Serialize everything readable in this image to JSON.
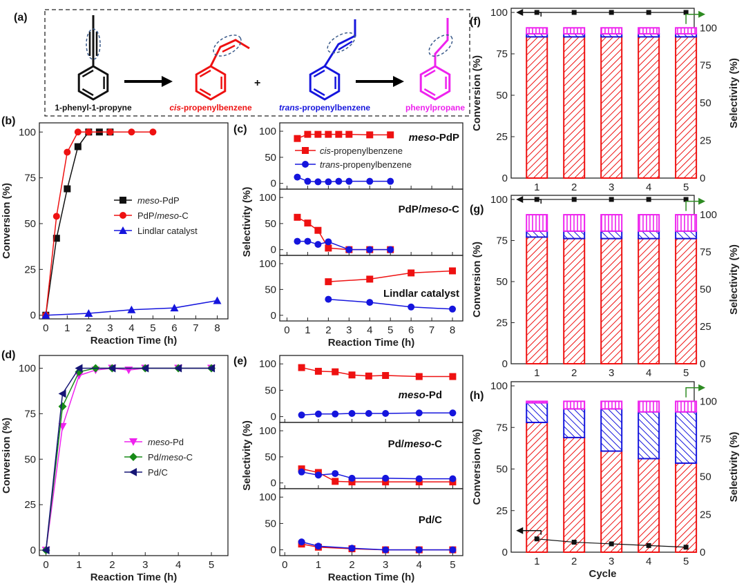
{
  "scheme": {
    "panel_label": "(a)",
    "molecules": [
      {
        "name": "1-phenyl-1-propyne",
        "color": "#111111"
      },
      {
        "name": "cis-propenylbenzene",
        "prefix": "cis",
        "suffix": "-propenylbenzene",
        "color": "#ee1111"
      },
      {
        "name": "trans-propenylbenzene",
        "prefix": "trans",
        "suffix": "-propenylbenzene",
        "color": "#1515dd"
      },
      {
        "name": "phenylpropane",
        "color": "#ee22ee"
      }
    ],
    "plus": "+"
  },
  "colors": {
    "cis": "#ee1111",
    "trans": "#1515dd",
    "propane": "#ee22ee",
    "black": "#111111",
    "green": "#2e8b22",
    "mesoPd": "#ee22ee",
    "PdmesoC": "#178a17",
    "PdC": "#151575"
  },
  "chart_data": [
    {
      "panel": "(b)",
      "type": "line",
      "xlabel": "Reaction Time (h)",
      "ylabel": "Conversion (%)",
      "xlim": [
        0,
        8
      ],
      "ylim": [
        0,
        100
      ],
      "xticks": [
        "0",
        "1",
        "2",
        "3",
        "4",
        "5",
        "6",
        "7",
        "8"
      ],
      "xtick_values": [
        0,
        1,
        2,
        3,
        4,
        5,
        6,
        7,
        8
      ],
      "yticks": [
        "0",
        "25",
        "50",
        "75",
        "100"
      ],
      "ytick_values": [
        0,
        25,
        50,
        75,
        100
      ],
      "legend": "center-right",
      "series": [
        {
          "name": "meso-PdP",
          "italic": "meso",
          "rest": "-PdP",
          "color": "#111111",
          "marker": "square",
          "x": [
            0,
            0.5,
            1,
            1.5,
            2,
            2.5,
            3
          ],
          "y": [
            0,
            42,
            69,
            92,
            100,
            100,
            100
          ]
        },
        {
          "name": "PdP/meso-C",
          "pre": "PdP/",
          "italic": "meso",
          "rest": "-C",
          "color": "#ee1111",
          "marker": "circle",
          "x": [
            0,
            0.5,
            1,
            1.5,
            2,
            3,
            4,
            5
          ],
          "y": [
            0,
            54,
            89,
            100,
            100,
            100,
            100,
            100
          ]
        },
        {
          "name": "Lindlar catalyst",
          "color": "#1515dd",
          "marker": "triangle",
          "x": [
            0,
            2,
            4,
            6,
            8
          ],
          "y": [
            0,
            1,
            3,
            4,
            8
          ]
        }
      ]
    },
    {
      "panel": "(c)",
      "type": "line",
      "xlabel": "Reaction Time (h)",
      "ylabel": "Selectivity (%)",
      "xlim": [
        0,
        8
      ],
      "xticks": [
        "0",
        "1",
        "2",
        "3",
        "4",
        "5",
        "6",
        "7",
        "8"
      ],
      "xtick_values": [
        0,
        1,
        2,
        3,
        4,
        5,
        6,
        7,
        8
      ],
      "yticks": [
        "0",
        "50",
        "100"
      ],
      "ytick_values": [
        0,
        50,
        100
      ],
      "legend_entries": [
        {
          "italic": "cis",
          "rest": "-propenylbenzene"
        },
        {
          "italic": "trans",
          "rest": "-propenylbenzene"
        }
      ],
      "subplots": [
        {
          "title": "meso-PdP",
          "t_italic": "meso",
          "t_rest": "-PdP",
          "series": [
            {
              "name": "cis-propenylbenzene",
              "color": "#ee1111",
              "marker": "square",
              "x": [
                0.5,
                1,
                1.5,
                2,
                2.5,
                3,
                4,
                5
              ],
              "y": [
                86,
                94,
                94,
                94,
                94,
                94,
                93,
                93
              ]
            },
            {
              "name": "trans-propenylbenzene",
              "color": "#1515dd",
              "marker": "circle",
              "x": [
                0.5,
                1,
                1.5,
                2,
                2.5,
                3,
                4,
                5
              ],
              "y": [
                12,
                4,
                3,
                3,
                4,
                4,
                4,
                4
              ]
            }
          ]
        },
        {
          "title": "PdP/meso-C",
          "t_pre": "PdP/",
          "t_italic": "meso",
          "t_rest": "-C",
          "series": [
            {
              "name": "cis-propenylbenzene",
              "color": "#ee1111",
              "marker": "square",
              "x": [
                0.5,
                1,
                1.5,
                2,
                3,
                4,
                5
              ],
              "y": [
                62,
                51,
                37,
                3,
                0,
                0,
                0
              ]
            },
            {
              "name": "trans-propenylbenzene",
              "color": "#1515dd",
              "marker": "circle",
              "x": [
                0.5,
                1,
                1.5,
                2,
                3,
                4,
                5
              ],
              "y": [
                16,
                16,
                10,
                15,
                0,
                0,
                0
              ]
            }
          ]
        },
        {
          "title": "Lindlar catalyst",
          "t_rest": "Lindlar catalyst",
          "series": [
            {
              "name": "cis-propenylbenzene",
              "color": "#ee1111",
              "marker": "square",
              "x": [
                2,
                4,
                6,
                8
              ],
              "y": [
                65,
                70,
                82,
                86
              ]
            },
            {
              "name": "trans-propenylbenzene",
              "color": "#1515dd",
              "marker": "circle",
              "x": [
                2,
                4,
                6,
                8
              ],
              "y": [
                31,
                25,
                16,
                12
              ]
            }
          ]
        }
      ]
    },
    {
      "panel": "(d)",
      "type": "line",
      "xlabel": "Reaction Time (h)",
      "ylabel": "Conversion (%)",
      "xlim": [
        0,
        5
      ],
      "ylim": [
        0,
        100
      ],
      "xticks": [
        "0",
        "1",
        "2",
        "3",
        "4",
        "5"
      ],
      "xtick_values": [
        0,
        1,
        2,
        3,
        4,
        5
      ],
      "yticks": [
        "0",
        "25",
        "50",
        "75",
        "100"
      ],
      "ytick_values": [
        0,
        25,
        50,
        75,
        100
      ],
      "legend": "center-right",
      "series": [
        {
          "name": "meso-Pd",
          "italic": "meso",
          "rest": "-Pd",
          "color": "#ee22ee",
          "marker": "triangle-down",
          "x": [
            0,
            0.5,
            1,
            1.5,
            2,
            2.5,
            3,
            4,
            5
          ],
          "y": [
            0,
            68,
            96,
            99,
            100,
            99,
            100,
            100,
            100
          ]
        },
        {
          "name": "Pd/meso-C",
          "pre": "Pd/",
          "italic": "meso",
          "rest": "-C",
          "color": "#178a17",
          "marker": "diamond",
          "x": [
            0,
            0.5,
            1,
            1.5,
            2,
            3,
            4,
            5
          ],
          "y": [
            0,
            79,
            98,
            100,
            100,
            100,
            100,
            100
          ]
        },
        {
          "name": "Pd/C",
          "rest": "Pd/C",
          "color": "#151575",
          "marker": "triangle-left",
          "x": [
            0,
            0.5,
            1,
            2,
            3,
            4,
            5
          ],
          "y": [
            0,
            86,
            100,
            100,
            100,
            100,
            100
          ]
        }
      ]
    },
    {
      "panel": "(e)",
      "type": "line",
      "xlabel": "Reaction Time (h)",
      "ylabel": "Selectivity (%)",
      "xlim": [
        0,
        5
      ],
      "xticks": [
        "0",
        "1",
        "2",
        "3",
        "4",
        "5"
      ],
      "xtick_values": [
        0,
        1,
        2,
        3,
        4,
        5
      ],
      "yticks": [
        "0",
        "50",
        "100"
      ],
      "ytick_values": [
        0,
        50,
        100
      ],
      "subplots": [
        {
          "title": "meso-Pd",
          "t_italic": "meso",
          "t_rest": "-Pd",
          "series": [
            {
              "name": "cis-propenylbenzene",
              "color": "#ee1111",
              "marker": "square",
              "x": [
                0.5,
                1,
                1.5,
                2,
                2.5,
                3,
                4,
                5
              ],
              "y": [
                93,
                86,
                85,
                79,
                77,
                78,
                76,
                76
              ]
            },
            {
              "name": "trans-propenylbenzene",
              "color": "#1515dd",
              "marker": "circle",
              "x": [
                0.5,
                1,
                1.5,
                2,
                2.5,
                3,
                4,
                5
              ],
              "y": [
                3,
                5,
                5,
                6,
                6,
                6,
                7,
                7
              ]
            }
          ]
        },
        {
          "title": "Pd/meso-C",
          "t_pre": "Pd/",
          "t_italic": "meso",
          "t_rest": "-C",
          "series": [
            {
              "name": "cis-propenylbenzene",
              "color": "#ee1111",
              "marker": "square",
              "x": [
                0.5,
                1,
                1.5,
                2,
                3,
                4,
                5
              ],
              "y": [
                27,
                20,
                3,
                2,
                2,
                2,
                2
              ]
            },
            {
              "name": "trans-propenylbenzene",
              "color": "#1515dd",
              "marker": "circle",
              "x": [
                0.5,
                1,
                1.5,
                2,
                3,
                4,
                5
              ],
              "y": [
                21,
                15,
                18,
                9,
                9,
                8,
                8
              ]
            }
          ]
        },
        {
          "title": "Pd/C",
          "t_rest": "Pd/C",
          "series": [
            {
              "name": "cis-propenylbenzene",
              "color": "#ee1111",
              "marker": "square",
              "x": [
                0.5,
                1,
                2,
                3,
                4,
                5
              ],
              "y": [
                11,
                5,
                2,
                0,
                0,
                0
              ]
            },
            {
              "name": "trans-propenylbenzene",
              "color": "#1515dd",
              "marker": "circle",
              "x": [
                0.5,
                1,
                2,
                3,
                4,
                5
              ],
              "y": [
                15,
                7,
                3,
                0,
                0,
                0
              ]
            }
          ]
        }
      ]
    },
    {
      "panel": "(f)",
      "type": "bar",
      "xlabel": "",
      "ylabel": "Conversion (%)",
      "y2label": "Selectivity (%)",
      "categories": [
        "1",
        "2",
        "3",
        "4",
        "5"
      ],
      "yticks": [
        "0",
        "25",
        "50",
        "75",
        "100"
      ],
      "ytick_values": [
        0,
        25,
        50,
        75,
        100
      ],
      "ylim": [
        0,
        100
      ],
      "y2lim": [
        0,
        100
      ],
      "conversion": [
        100,
        100,
        100,
        100,
        100
      ],
      "stack": {
        "cis": [
          94,
          94,
          94,
          94,
          94
        ],
        "trans": [
          2,
          2,
          2,
          2,
          2
        ],
        "propane": [
          4,
          4,
          4,
          4,
          4
        ]
      }
    },
    {
      "panel": "(g)",
      "type": "bar",
      "xlabel": "",
      "ylabel": "Conversion (%)",
      "y2label": "Selectivity (%)",
      "categories": [
        "1",
        "2",
        "3",
        "4",
        "5"
      ],
      "yticks": [
        "0",
        "25",
        "50",
        "75",
        "100"
      ],
      "ytick_values": [
        0,
        25,
        50,
        75,
        100
      ],
      "ylim": [
        0,
        100
      ],
      "y2lim": [
        0,
        100
      ],
      "conversion": [
        100,
        100,
        100,
        100,
        100
      ],
      "stack": {
        "cis": [
          85,
          84,
          84,
          84,
          84
        ],
        "trans": [
          4,
          5,
          5,
          5,
          5
        ],
        "propane": [
          11,
          11,
          11,
          11,
          11
        ]
      }
    },
    {
      "panel": "(h)",
      "type": "bar",
      "xlabel": "Cycle",
      "ylabel": "Conversion (%)",
      "y2label": "Selectivity (%)",
      "categories": [
        "1",
        "2",
        "3",
        "4",
        "5"
      ],
      "yticks": [
        "0",
        "25",
        "50",
        "75",
        "100"
      ],
      "ytick_values": [
        0,
        25,
        50,
        75,
        100
      ],
      "ylim": [
        0,
        100
      ],
      "y2lim": [
        0,
        100
      ],
      "conversion": [
        8,
        6,
        5,
        4,
        3
      ],
      "stack": {
        "cis": [
          86,
          76,
          67,
          62,
          59
        ],
        "trans": [
          13,
          19,
          28,
          31,
          34
        ],
        "propane": [
          1,
          5,
          5,
          7,
          7
        ]
      }
    }
  ]
}
